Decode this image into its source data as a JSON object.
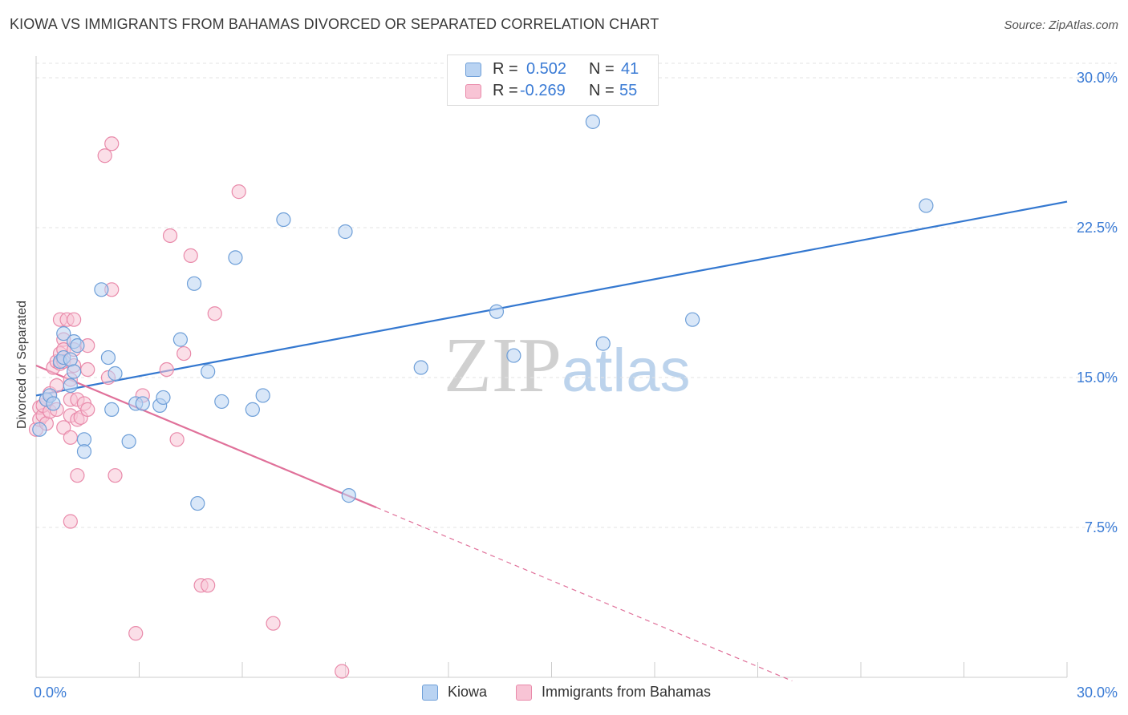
{
  "title": "KIOWA VS IMMIGRANTS FROM BAHAMAS DIVORCED OR SEPARATED CORRELATION CHART",
  "source": "Source: ZipAtlas.com",
  "watermark": {
    "zip": "ZIP",
    "atlas": "atlas"
  },
  "legend": {
    "r_label": "R =",
    "n_label": "N =",
    "rows": [
      {
        "r": "0.502",
        "n": "41"
      },
      {
        "r": "-0.269",
        "n": "55"
      }
    ]
  },
  "colors": {
    "kiowa_fill": "#b9d3f2",
    "kiowa_stroke": "#6e9fd8",
    "kiowa_line": "#3478d0",
    "bahamas_fill": "#f8c4d5",
    "bahamas_stroke": "#e98aaa",
    "bahamas_line": "#e0719a",
    "tick_label": "#3a7bd5",
    "grid": "#e3e3e3"
  },
  "chart_data": {
    "type": "scatter",
    "title": "KIOWA VS IMMIGRANTS FROM BAHAMAS DIVORCED OR SEPARATED CORRELATION CHART",
    "xlabel": "",
    "ylabel": "Divorced or Separated",
    "xlim": [
      0,
      30
    ],
    "ylim": [
      0,
      30
    ],
    "x_tick_labels": [
      "0.0%",
      "30.0%"
    ],
    "y_ticks": [
      7.5,
      15.0,
      22.5,
      30.0
    ],
    "y_tick_labels": [
      "7.5%",
      "15.0%",
      "22.5%",
      "30.0%"
    ],
    "grid": true,
    "legend_position": "bottom-center",
    "series": [
      {
        "name": "Kiowa",
        "r": 0.502,
        "n": 41,
        "trend": {
          "x0": 0.0,
          "y0": 14.1,
          "x1": 30.0,
          "y1": 23.8
        },
        "points": [
          [
            0.1,
            12.4
          ],
          [
            0.3,
            13.9
          ],
          [
            0.4,
            14.1
          ],
          [
            0.5,
            13.7
          ],
          [
            0.7,
            15.8
          ],
          [
            0.8,
            17.2
          ],
          [
            0.8,
            16.0
          ],
          [
            1.0,
            15.9
          ],
          [
            1.0,
            14.6
          ],
          [
            1.1,
            15.3
          ],
          [
            1.1,
            16.8
          ],
          [
            1.2,
            16.6
          ],
          [
            1.4,
            11.9
          ],
          [
            1.4,
            11.3
          ],
          [
            1.9,
            19.4
          ],
          [
            2.1,
            16.0
          ],
          [
            2.2,
            13.4
          ],
          [
            2.3,
            15.2
          ],
          [
            2.7,
            11.8
          ],
          [
            2.9,
            13.7
          ],
          [
            3.1,
            13.7
          ],
          [
            3.6,
            13.6
          ],
          [
            3.7,
            14.0
          ],
          [
            4.2,
            16.9
          ],
          [
            4.6,
            19.7
          ],
          [
            4.7,
            8.7
          ],
          [
            5.0,
            15.3
          ],
          [
            5.4,
            13.8
          ],
          [
            5.8,
            21.0
          ],
          [
            6.3,
            13.4
          ],
          [
            6.6,
            14.1
          ],
          [
            7.2,
            22.9
          ],
          [
            9.0,
            22.3
          ],
          [
            9.1,
            9.1
          ],
          [
            11.2,
            15.5
          ],
          [
            13.4,
            18.3
          ],
          [
            13.9,
            16.1
          ],
          [
            16.2,
            27.8
          ],
          [
            16.5,
            16.7
          ],
          [
            19.1,
            17.9
          ],
          [
            25.9,
            23.6
          ]
        ]
      },
      {
        "name": "Immigrants from Bahamas",
        "r": -0.269,
        "n": 55,
        "trend": {
          "x0": 0.0,
          "y0": 15.6,
          "x1": 9.9,
          "y1": 8.5,
          "dashed_to_x": 22.0
        },
        "points": [
          [
            0.0,
            12.4
          ],
          [
            0.1,
            12.9
          ],
          [
            0.1,
            13.5
          ],
          [
            0.2,
            13.1
          ],
          [
            0.2,
            13.6
          ],
          [
            0.3,
            12.7
          ],
          [
            0.3,
            13.9
          ],
          [
            0.4,
            14.2
          ],
          [
            0.4,
            13.3
          ],
          [
            0.5,
            15.5
          ],
          [
            0.6,
            14.6
          ],
          [
            0.6,
            13.4
          ],
          [
            0.6,
            15.8
          ],
          [
            0.7,
            16.2
          ],
          [
            0.7,
            17.9
          ],
          [
            0.7,
            15.7
          ],
          [
            0.8,
            16.9
          ],
          [
            0.8,
            16.4
          ],
          [
            0.8,
            15.8
          ],
          [
            0.8,
            12.5
          ],
          [
            0.9,
            17.9
          ],
          [
            1.0,
            14.9
          ],
          [
            1.0,
            13.9
          ],
          [
            1.0,
            7.8
          ],
          [
            1.0,
            13.1
          ],
          [
            1.0,
            12.0
          ],
          [
            1.1,
            15.6
          ],
          [
            1.1,
            17.9
          ],
          [
            1.1,
            16.4
          ],
          [
            1.2,
            13.9
          ],
          [
            1.2,
            10.1
          ],
          [
            1.2,
            12.9
          ],
          [
            1.3,
            13.0
          ],
          [
            1.4,
            13.7
          ],
          [
            1.5,
            15.4
          ],
          [
            1.5,
            13.4
          ],
          [
            1.5,
            16.6
          ],
          [
            2.0,
            26.1
          ],
          [
            2.1,
            15.0
          ],
          [
            2.2,
            19.4
          ],
          [
            2.2,
            26.7
          ],
          [
            2.3,
            10.1
          ],
          [
            2.9,
            2.2
          ],
          [
            3.1,
            14.1
          ],
          [
            3.8,
            15.4
          ],
          [
            3.9,
            22.1
          ],
          [
            4.1,
            11.9
          ],
          [
            4.3,
            16.2
          ],
          [
            4.5,
            21.1
          ],
          [
            4.8,
            4.6
          ],
          [
            5.0,
            4.6
          ],
          [
            5.2,
            18.2
          ],
          [
            5.9,
            24.3
          ],
          [
            6.9,
            2.7
          ],
          [
            8.9,
            0.3
          ]
        ]
      }
    ]
  }
}
